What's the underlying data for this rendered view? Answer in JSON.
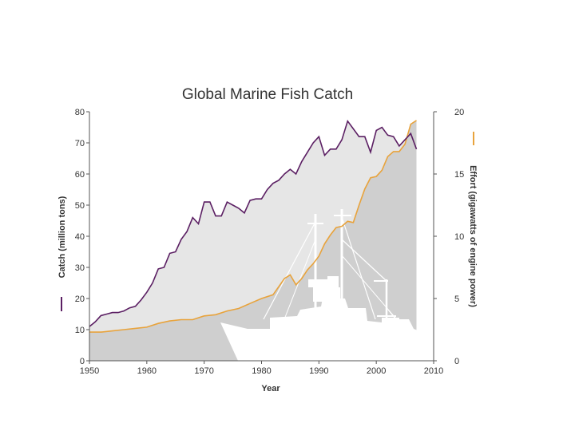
{
  "chart_data": {
    "type": "line",
    "title": "Global Marine Fish Catch",
    "xlabel": "Year",
    "ylabel": "Catch (million tons)",
    "y2label": "Effort (gigawatts of engine power)",
    "xlim": [
      1950,
      2010
    ],
    "ylim": [
      0,
      80
    ],
    "y2lim": [
      0,
      20
    ],
    "x_ticks": [
      1950,
      1960,
      1970,
      1980,
      1990,
      2000,
      2010
    ],
    "y_ticks": [
      0,
      10,
      20,
      30,
      40,
      50,
      60,
      70,
      80
    ],
    "y2_ticks": [
      0,
      5,
      10,
      15,
      20
    ],
    "grid": false,
    "legend": "axis-side line swatches",
    "colors": {
      "catch": "#5b1f63",
      "effort": "#e8a33c",
      "catch_fill": "#e6e6e6",
      "effort_fill": "#cfcfcf"
    },
    "decoration": "fishing-trawler-silhouette",
    "series": [
      {
        "axis": "left",
        "x": [
          1950,
          1951,
          1952,
          1953,
          1954,
          1955,
          1956,
          1957,
          1958,
          1959,
          1960,
          1961,
          1962,
          1963,
          1964,
          1965,
          1966,
          1967,
          1968,
          1969,
          1970,
          1971,
          1972,
          1973,
          1974,
          1975,
          1976,
          1977,
          1978,
          1979,
          1980,
          1981,
          1982,
          1983,
          1984,
          1985,
          1986,
          1987,
          1988,
          1989,
          1990,
          1991,
          1992,
          1993,
          1994,
          1995,
          1996,
          1997,
          1998,
          1999,
          2000,
          2001,
          2002,
          2003,
          2004,
          2005,
          2006,
          2007
        ],
        "values": [
          11,
          12.5,
          14.5,
          15,
          15.5,
          15.5,
          16,
          17,
          17.5,
          19.5,
          22,
          25,
          29.5,
          30,
          34.5,
          35,
          39,
          41.5,
          46,
          44,
          51,
          51,
          46.5,
          46.5,
          51,
          50,
          49,
          47.5,
          51.5,
          52,
          52,
          55,
          57,
          58,
          60,
          61.5,
          60,
          64,
          67,
          70,
          72,
          66,
          68,
          68,
          71,
          77,
          74.5,
          72,
          72,
          67,
          74,
          75,
          72.5,
          72,
          69,
          71,
          73,
          68
        ]
      },
      {
        "axis": "right",
        "x": [
          1950,
          1952,
          1954,
          1956,
          1958,
          1960,
          1962,
          1964,
          1966,
          1968,
          1970,
          1972,
          1974,
          1976,
          1978,
          1980,
          1982,
          1984,
          1985,
          1986,
          1987,
          1988,
          1989,
          1990,
          1991,
          1992,
          1993,
          1994,
          1995,
          1996,
          1997,
          1998,
          1999,
          2000,
          2001,
          2002,
          2003,
          2004,
          2005,
          2006,
          2007
        ],
        "values": [
          2.3,
          2.3,
          2.4,
          2.5,
          2.6,
          2.7,
          3,
          3.2,
          3.3,
          3.3,
          3.6,
          3.7,
          4,
          4.2,
          4.6,
          5,
          5.3,
          6.6,
          6.9,
          6.1,
          6.6,
          7.3,
          7.8,
          8.4,
          9.4,
          10.1,
          10.7,
          10.8,
          11.2,
          11.1,
          12.5,
          13.8,
          14.7,
          14.8,
          15.3,
          16.4,
          16.8,
          16.8,
          17.4,
          19,
          19.3
        ]
      }
    ]
  }
}
